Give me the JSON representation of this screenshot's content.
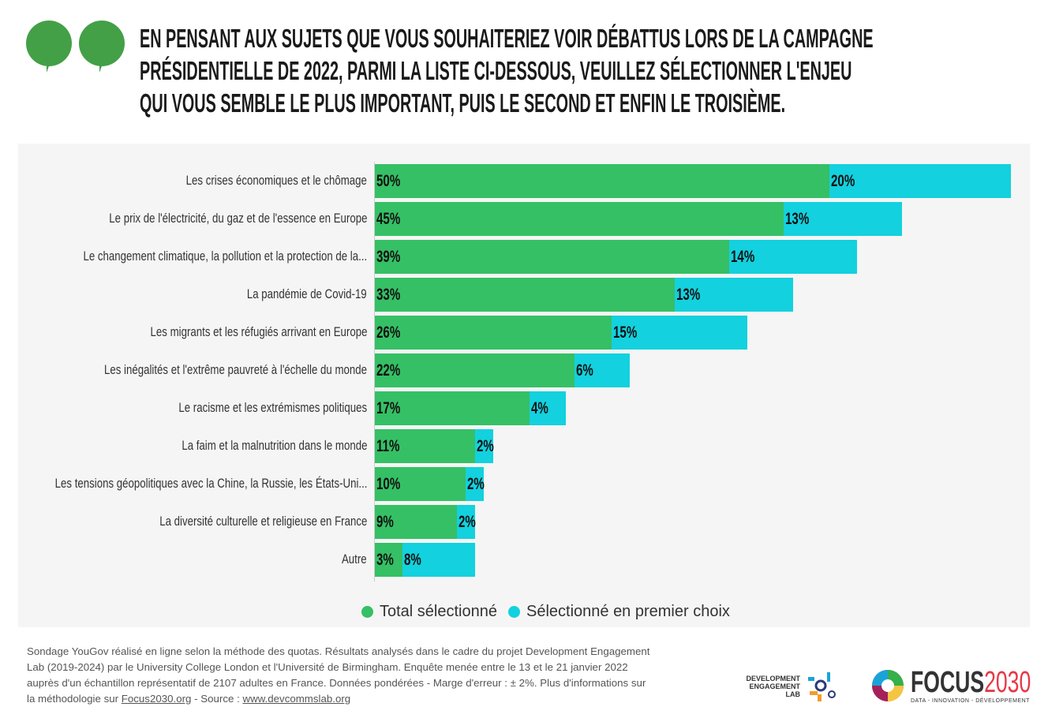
{
  "title_lines": [
    "EN PENSANT AUX SUJETS QUE VOUS SOUHAITERIEZ VOIR DÉBATTUS LORS DE LA CAMPAGNE",
    "PRÉSIDENTIELLE DE 2022, PARMI LA LISTE CI-DESSOUS, VEUILLEZ SÉLECTIONNER L'ENJEU",
    "QUI VOUS SEMBLE LE PLUS IMPORTANT, PUIS LE SECOND ET ENFIN LE TROISIÈME."
  ],
  "colors": {
    "total": "#35c065",
    "first": "#13d1de",
    "quote": "#43a047"
  },
  "chart_data": {
    "type": "bar",
    "orientation": "horizontal",
    "stacked": true,
    "categories": [
      "Les crises économiques et le chômage",
      "Le prix de l'électricité, du gaz et de l'essence en Europe",
      "Le changement climatique, la pollution et la protection de la...",
      "La pandémie de Covid-19",
      "Les migrants et les réfugiés arrivant en Europe",
      "Les inégalités et l'extrême pauvreté à l'échelle du monde",
      "Le racisme et les extrémismes politiques",
      "La faim et la malnutrition dans le monde",
      "Les tensions géopolitiques avec la Chine, la Russie, les États-Uni...",
      "La diversité culturelle et religieuse en France",
      "Autre"
    ],
    "series": [
      {
        "name": "Total sélectionné",
        "values": [
          50,
          45,
          39,
          33,
          26,
          22,
          17,
          11,
          10,
          9,
          3
        ]
      },
      {
        "name": "Sélectionné en premier choix",
        "values": [
          20,
          13,
          14,
          13,
          15,
          6,
          4,
          2,
          2,
          2,
          8
        ]
      }
    ],
    "legend": "bottom",
    "grid": false
  },
  "footer": {
    "text": "Sondage YouGov réalisé en ligne selon la méthode des quotas. Résultats analysés dans le cadre du projet Development Engagement Lab (2019-2024) par le University College London et l'Université de Birmingham. Enquête menée entre le 13 et le 21 janvier 2022 auprès d'un échantillon représentatif de 2107 adultes en France. Données pondérées - Marge d'erreur : ± 2%. Plus d'informations sur la méthodologie sur ",
    "link1": "Focus2030.org",
    "mid": " - Source : ",
    "link2": "www.devcommslab.org"
  },
  "logos": {
    "del": "DEVELOPMENT ENGAGEMENT LAB",
    "focus": "FOCUS2030",
    "focus_tagline": "DATA - INNOVATION - DÉVELOPPEMENT"
  }
}
